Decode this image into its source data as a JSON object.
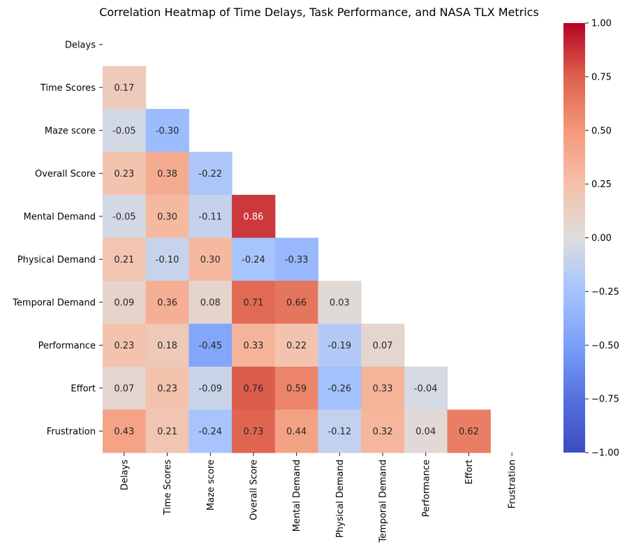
{
  "chart_data": {
    "type": "heatmap",
    "title": "Correlation Heatmap of Time Delays, Task Performance, and NASA TLX Metrics",
    "xlabel": "",
    "ylabel": "",
    "row_labels": [
      "Delays",
      "Time Scores",
      "Maze score",
      "Overall Score",
      "Mental Demand",
      "Physical Demand",
      "Temporal Demand",
      "Performance",
      "Effort",
      "Frustration"
    ],
    "col_labels": [
      "Delays",
      "Time Scores",
      "Maze score",
      "Overall Score",
      "Mental Demand",
      "Physical Demand",
      "Temporal Demand",
      "Performance",
      "Effort",
      "Frustration"
    ],
    "mask": "upper triangle including diagonal",
    "values": [
      [],
      [
        0.17
      ],
      [
        -0.05,
        -0.3
      ],
      [
        0.23,
        0.38,
        -0.22
      ],
      [
        -0.05,
        0.3,
        -0.11,
        0.86
      ],
      [
        0.21,
        -0.1,
        0.3,
        -0.24,
        -0.33
      ],
      [
        0.09,
        0.36,
        0.08,
        0.71,
        0.66,
        0.03
      ],
      [
        0.23,
        0.18,
        -0.45,
        0.33,
        0.22,
        -0.19,
        0.07
      ],
      [
        0.07,
        0.23,
        -0.09,
        0.76,
        0.59,
        -0.26,
        0.33,
        -0.04
      ],
      [
        0.43,
        0.21,
        -0.24,
        0.73,
        0.44,
        -0.12,
        0.32,
        0.04,
        0.62
      ]
    ],
    "value_labels": [
      [],
      [
        "0.17"
      ],
      [
        "-0.05",
        "-0.30"
      ],
      [
        "0.23",
        "0.38",
        "-0.22"
      ],
      [
        "-0.05",
        "0.30",
        "-0.11",
        "0.86"
      ],
      [
        "0.21",
        "-0.10",
        "0.30",
        "-0.24",
        "-0.33"
      ],
      [
        "0.09",
        "0.36",
        "0.08",
        "0.71",
        "0.66",
        "0.03"
      ],
      [
        "0.23",
        "0.18",
        "-0.45",
        "0.33",
        "0.22",
        "-0.19",
        "0.07"
      ],
      [
        "0.07",
        "0.23",
        "-0.09",
        "0.76",
        "0.59",
        "-0.26",
        "0.33",
        "-0.04"
      ],
      [
        "0.43",
        "0.21",
        "-0.24",
        "0.73",
        "0.44",
        "-0.12",
        "0.32",
        "0.04",
        "0.62"
      ]
    ],
    "colormap": "coolwarm",
    "colorbar": {
      "vmin": -1.0,
      "vmax": 1.0,
      "ticks": [
        1.0,
        0.75,
        0.5,
        0.25,
        0.0,
        -0.25,
        -0.5,
        -0.75,
        -1.0
      ],
      "tick_labels": [
        "1.00",
        "0.75",
        "0.50",
        "0.25",
        "0.00",
        "−0.25",
        "−0.50",
        "−0.75",
        "−1.00"
      ],
      "placement": "right"
    },
    "colors": {
      "cool_end": "#3b4cc0",
      "neutral": "#dddddd",
      "warm_end": "#b40426",
      "text_dark": "#262626",
      "text_light": "#ffffff"
    },
    "grid": false
  }
}
